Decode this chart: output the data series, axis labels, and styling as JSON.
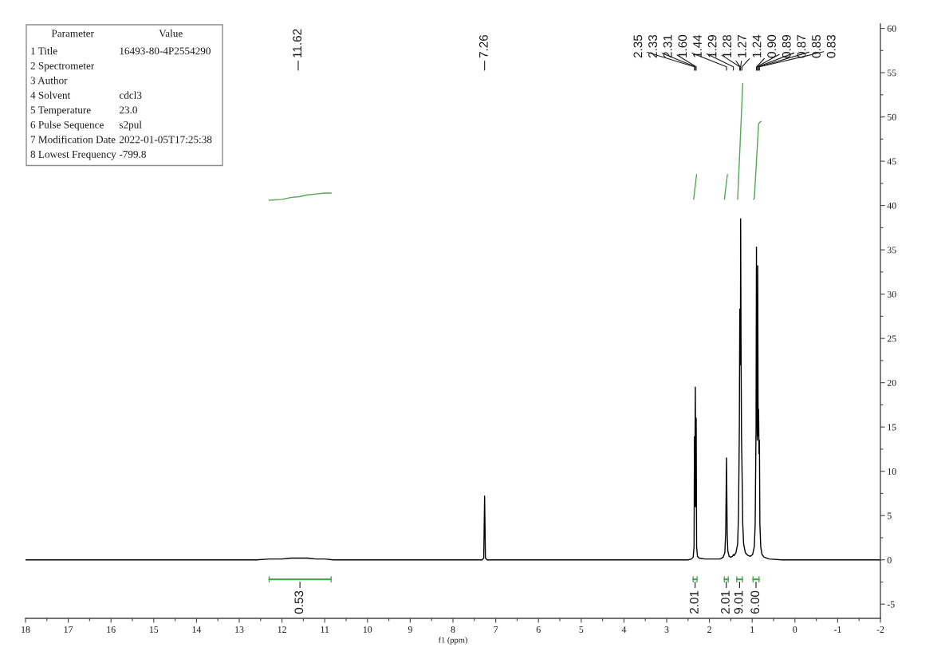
{
  "chart_data": {
    "type": "line",
    "xlabel": "f1 (ppm)",
    "xlim": [
      18,
      -2
    ],
    "xticks": [
      18,
      17,
      16,
      15,
      14,
      13,
      12,
      11,
      10,
      9,
      8,
      7,
      6,
      5,
      4,
      3,
      2,
      1,
      0,
      -1,
      -2
    ],
    "ylim": [
      -6.6,
      60.5
    ],
    "yticks": [
      -5,
      0,
      5,
      10,
      15,
      20,
      25,
      30,
      35,
      40,
      45,
      50,
      55,
      60
    ],
    "series": [
      {
        "color": "#000000",
        "x": [
          18.0,
          16.5,
          15.0,
          13.5,
          12.6,
          12.3,
          12.0,
          11.8,
          11.62,
          11.4,
          11.2,
          11.0,
          10.8,
          10.5,
          9.5,
          8.5,
          7.6,
          7.32,
          7.28,
          7.26,
          7.24,
          7.2,
          6.5,
          5.5,
          4.5,
          3.5,
          2.8,
          2.5,
          2.42,
          2.38,
          2.36,
          2.35,
          2.345,
          2.33,
          2.32,
          2.31,
          2.3,
          2.28,
          2.24,
          2.1,
          1.9,
          1.75,
          1.68,
          1.64,
          1.62,
          1.6,
          1.585,
          1.57,
          1.54,
          1.5,
          1.46,
          1.44,
          1.42,
          1.38,
          1.34,
          1.32,
          1.3,
          1.29,
          1.285,
          1.28,
          1.275,
          1.27,
          1.26,
          1.25,
          1.24,
          1.22,
          1.2,
          1.16,
          1.1,
          1.04,
          0.99,
          0.95,
          0.93,
          0.91,
          0.9,
          0.895,
          0.89,
          0.88,
          0.87,
          0.86,
          0.85,
          0.84,
          0.83,
          0.82,
          0.8,
          0.77,
          0.72,
          0.6,
          0.3,
          0.0,
          -0.5,
          -1.0,
          -1.5,
          -2.0
        ],
        "values": [
          0.0,
          0.0,
          0.0,
          0.0,
          0.0,
          0.1,
          0.1,
          0.2,
          0.2,
          0.2,
          0.1,
          0.1,
          0.0,
          0.0,
          0.0,
          0.0,
          0.0,
          0.0,
          0.2,
          7.2,
          0.2,
          0.0,
          0.0,
          0.0,
          0.0,
          0.0,
          0.0,
          0.0,
          0.1,
          0.3,
          1.5,
          13.9,
          6.0,
          19.5,
          6.0,
          16.0,
          1.5,
          0.4,
          0.2,
          0.1,
          0.1,
          0.1,
          0.3,
          0.8,
          3.0,
          11.5,
          3.0,
          1.0,
          0.4,
          0.3,
          0.4,
          0.6,
          0.5,
          0.8,
          1.8,
          5.0,
          15.0,
          28.3,
          22.0,
          25.0,
          23.0,
          38.5,
          24.0,
          14.0,
          11.0,
          4.0,
          1.8,
          0.8,
          0.5,
          0.4,
          0.6,
          1.5,
          4.0,
          15.0,
          35.3,
          17.0,
          17.5,
          13.5,
          33.2,
          14.0,
          17.0,
          12.0,
          13.5,
          4.0,
          1.5,
          0.6,
          0.3,
          0.1,
          0.0,
          0.0,
          0.0,
          0.0,
          0.0,
          0.0
        ]
      },
      {
        "color": "#52a852",
        "x": [
          12.3,
          12.0,
          11.8,
          11.6,
          11.4,
          11.2,
          11.0,
          10.85
        ],
        "values": [
          40.6,
          40.7,
          40.9,
          41.0,
          41.2,
          41.3,
          41.4,
          41.4
        ]
      },
      {
        "color": "#52a852",
        "x": [
          2.37,
          2.335,
          2.3
        ],
        "values": [
          40.7,
          42.1,
          43.5
        ]
      },
      {
        "color": "#52a852",
        "x": [
          1.65,
          1.615,
          1.58
        ],
        "values": [
          40.7,
          42.1,
          43.5
        ]
      },
      {
        "color": "#52a852",
        "x": [
          1.34,
          1.28,
          1.22
        ],
        "values": [
          40.7,
          47.2,
          53.8
        ]
      },
      {
        "color": "#52a852",
        "x": [
          0.97,
          0.95,
          0.9,
          0.85,
          0.82,
          0.79
        ],
        "values": [
          40.7,
          40.8,
          45.0,
          49.2,
          49.4,
          49.5
        ]
      },
      {
        "color": "#52a852",
        "x": [
          12.3,
          10.85,
          6.0,
          2.38,
          2.29,
          1.9,
          1.65,
          1.56,
          1.45,
          1.36,
          1.23,
          1.1,
          0.98,
          0.84
        ],
        "values": [
          -2.2,
          -2.2,
          null,
          -2.2,
          -2.2,
          null,
          -2.2,
          -2.2,
          null,
          -2.2,
          -2.2,
          null,
          -2.2,
          -2.2
        ],
        "errors": [
          0.35,
          0.35,
          null,
          0.35,
          0.35,
          null,
          0.35,
          0.35,
          null,
          0.35,
          0.35,
          null,
          0.35,
          0.35
        ]
      }
    ],
    "annotations": [
      "11.62",
      "7.26",
      "2.35",
      "2.33",
      "2.31",
      "1.60",
      "1.44",
      "1.29",
      "1.28",
      "1.27",
      "1.24",
      "0.90",
      "0.89",
      "0.87",
      "0.85",
      "0.83",
      {
        "text": "0.53",
        "x": 11.58,
        "y": -2.2
      },
      {
        "text": "2.01",
        "x": 2.335,
        "y": -2.2
      },
      {
        "text": "2.01",
        "x": 1.605,
        "y": -2.2
      },
      {
        "text": "9.01",
        "x": 1.295,
        "y": -2.2
      },
      {
        "text": "6.00",
        "x": 0.91,
        "y": -2.2
      },
      "Parameter\tValue",
      "1 Title\t16493-80-4P2554290",
      "2 Spectrometer\t",
      "3 Author\t",
      "4 Solvent\tcdcl3",
      "5 Temperature\t23.0",
      "6 Pulse Sequence\ts2pul",
      "7 Modification Date\t2022-01-05T17:25:38",
      "8 Lowest Frequency\t-799.8"
    ]
  }
}
